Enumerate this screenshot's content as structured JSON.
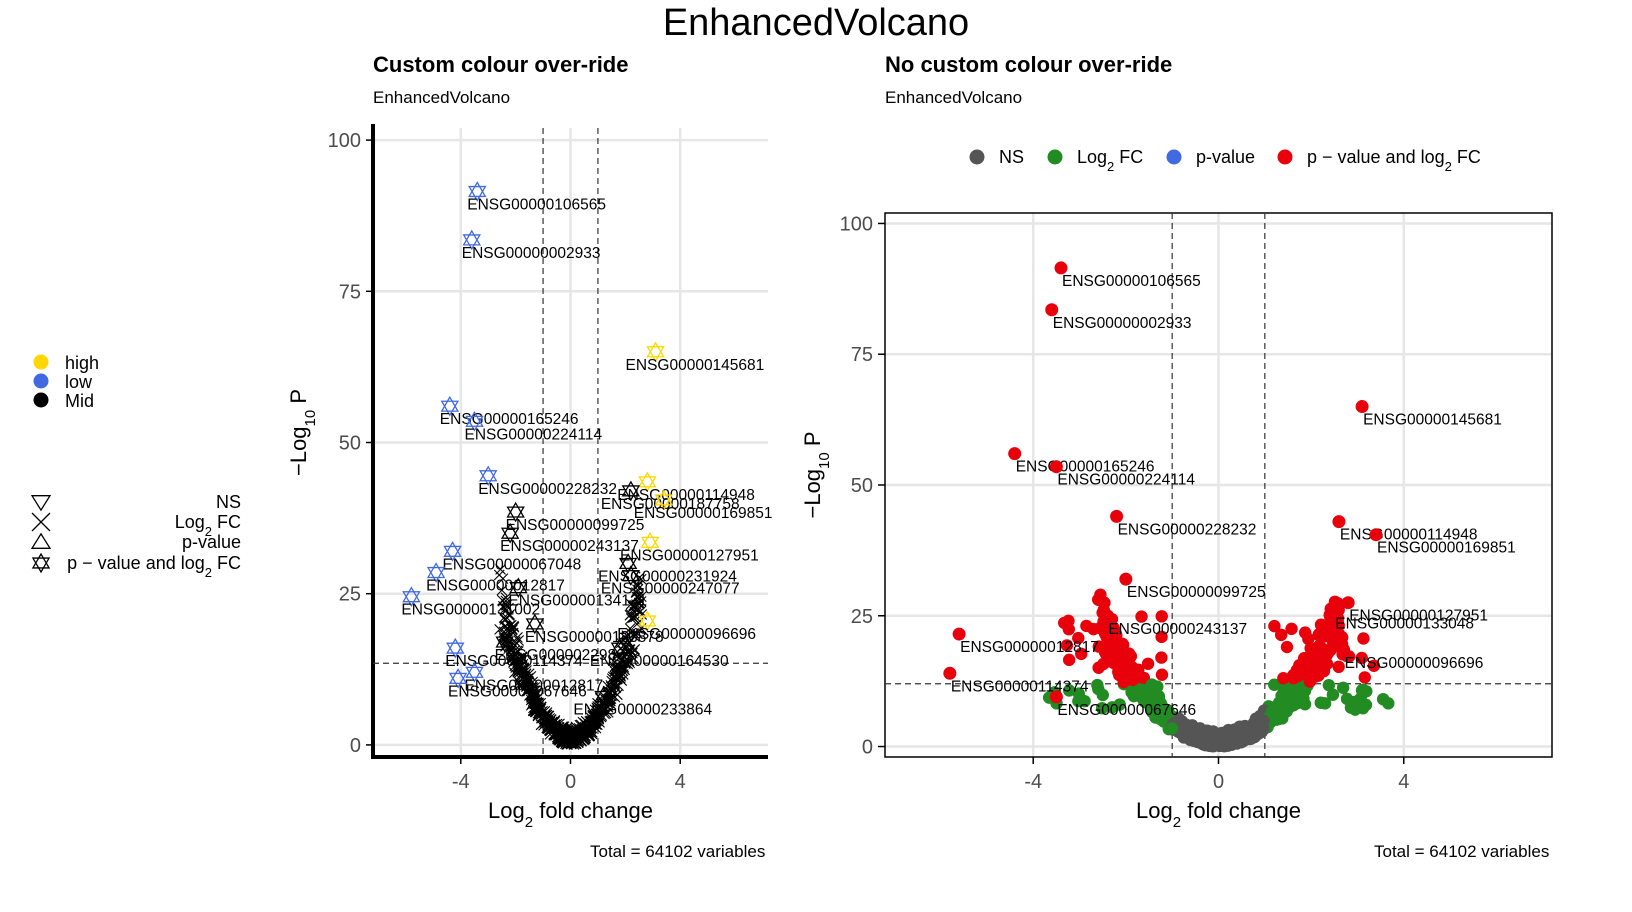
{
  "main_title": "EnhancedVolcano",
  "left_legend": {
    "colour_items": [
      {
        "label": "high",
        "color": "#FFD700"
      },
      {
        "label": "low",
        "color": "#4169E1"
      },
      {
        "label": "Mid",
        "color": "#000000"
      }
    ],
    "shape_items": [
      {
        "label": "NS",
        "shape": "triangle-down"
      },
      {
        "label_main": "Log",
        "label_sub": "2",
        "label_tail": " FC",
        "shape": "cross"
      },
      {
        "label": "p-value",
        "shape": "triangle-up"
      },
      {
        "label_main": "p − value and log",
        "label_sub": "2",
        "label_tail": " FC",
        "shape": "star"
      }
    ]
  },
  "right_legend": {
    "items": [
      {
        "label": "NS",
        "color": "#555555"
      },
      {
        "label_main": "Log",
        "label_sub": "2",
        "label_tail": " FC",
        "color": "#228B22"
      },
      {
        "label": "p-value",
        "color": "#4169E1"
      },
      {
        "label_main": "p − value and log",
        "label_sub": "2",
        "label_tail": " FC",
        "color": "#E8000B"
      }
    ]
  },
  "chart_data": [
    {
      "type": "scatter",
      "title": "Custom colour over-ride",
      "subtitle": "EnhancedVolcano",
      "caption": "Total = 64102 variables",
      "xlabel_main": "Log",
      "xlabel_sub": "2",
      "xlabel_tail": " fold change",
      "ylabel_main": "−Log",
      "ylabel_sub": "10",
      "ylabel_tail": " P",
      "xlim": [
        -7.2,
        7.2
      ],
      "ylim": [
        -2,
        102
      ],
      "xticks": [
        -4,
        0,
        4
      ],
      "yticks": [
        0,
        25,
        50,
        75,
        100
      ],
      "fc_cutoff": 1,
      "p_cutoff_log10": 13.5,
      "labels": [
        {
          "gene": "ENSG00000106565",
          "x": -3.4,
          "y": 91.5,
          "color": "#4169E1"
        },
        {
          "gene": "ENSG00000002933",
          "x": -3.6,
          "y": 83.5,
          "color": "#4169E1"
        },
        {
          "gene": "ENSG00000145681",
          "x": 3.1,
          "y": 65,
          "color": "#FFD700"
        },
        {
          "gene": "ENSG00000165246",
          "x": -4.4,
          "y": 56,
          "color": "#4169E1"
        },
        {
          "gene": "ENSG00000224114",
          "x": -3.5,
          "y": 53.5,
          "color": "#4169E1"
        },
        {
          "gene": "ENSG00000228232",
          "x": -3.0,
          "y": 44.5,
          "color": "#4169E1"
        },
        {
          "gene": "ENSG00000114948",
          "x": 2.8,
          "y": 43.5,
          "color": "#FFD700"
        },
        {
          "gene": "ENSG00000187758",
          "x": 2.2,
          "y": 42,
          "color": "#000000"
        },
        {
          "gene": "ENSG00000169851",
          "x": 3.4,
          "y": 40.5,
          "color": "#FFD700"
        },
        {
          "gene": "ENSG00000099725",
          "x": -2.0,
          "y": 38.5,
          "color": "#000000"
        },
        {
          "gene": "ENSG00000243137",
          "x": -2.2,
          "y": 35,
          "color": "#000000"
        },
        {
          "gene": "ENSG00000127951",
          "x": 2.9,
          "y": 33.5,
          "color": "#FFD700"
        },
        {
          "gene": "ENSG00000231924",
          "x": 2.1,
          "y": 30,
          "color": "#000000"
        },
        {
          "gene": "ENSG00000067048",
          "x": -4.3,
          "y": 32,
          "color": "#4169E1"
        },
        {
          "gene": "ENSG00000012817",
          "x": -4.9,
          "y": 28.5,
          "color": "#4169E1"
        },
        {
          "gene": "ENSG00000247077",
          "x": 2.2,
          "y": 28,
          "color": "#000000"
        },
        {
          "gene": "ENSG00000134121",
          "x": -1.9,
          "y": 26,
          "color": "#000000"
        },
        {
          "gene": "ENSG00000131002",
          "x": -5.8,
          "y": 24.5,
          "color": "#4169E1"
        },
        {
          "gene": "ENSG00000096696",
          "x": 2.8,
          "y": 20.5,
          "color": "#FFD700"
        },
        {
          "gene": "ENSG00000183878",
          "x": -1.3,
          "y": 20,
          "color": "#000000"
        },
        {
          "gene": "ENSG00000229807",
          "x": -2.4,
          "y": 17,
          "color": "#000000"
        },
        {
          "gene": "ENSG00000114374",
          "x": -4.2,
          "y": 16,
          "color": "#4169E1"
        },
        {
          "gene": "ENSG00000164530",
          "x": 1.8,
          "y": 16,
          "color": "#000000"
        },
        {
          "gene": "ENSG00000012817",
          "x": -3.5,
          "y": 12,
          "color": "#4169E1"
        },
        {
          "gene": "ENSG00000233864",
          "x": 1.2,
          "y": 8,
          "color": "#000000"
        },
        {
          "gene": "ENSG00000067646",
          "x": -4.1,
          "y": 11,
          "color": "#4169E1"
        }
      ]
    },
    {
      "type": "scatter",
      "title": "No custom colour over-ride",
      "subtitle": "EnhancedVolcano",
      "caption": "Total = 64102 variables",
      "xlabel_main": "Log",
      "xlabel_sub": "2",
      "xlabel_tail": " fold change",
      "ylabel_main": "−Log",
      "ylabel_sub": "10",
      "ylabel_tail": " P",
      "xlim": [
        -7.2,
        7.2
      ],
      "ylim": [
        -2,
        102
      ],
      "xticks": [
        -4,
        0,
        4
      ],
      "yticks": [
        0,
        25,
        50,
        75,
        100
      ],
      "fc_cutoff": 1,
      "p_cutoff_log10": 12,
      "labels": [
        {
          "gene": "ENSG00000106565",
          "x": -3.4,
          "y": 91.5
        },
        {
          "gene": "ENSG00000002933",
          "x": -3.6,
          "y": 83.5
        },
        {
          "gene": "ENSG00000145681",
          "x": 3.1,
          "y": 65
        },
        {
          "gene": "ENSG00000165246",
          "x": -4.4,
          "y": 56
        },
        {
          "gene": "ENSG00000224114",
          "x": -3.5,
          "y": 53.5
        },
        {
          "gene": "ENSG00000228232",
          "x": -2.2,
          "y": 44
        },
        {
          "gene": "ENSG00000114948",
          "x": 2.6,
          "y": 43
        },
        {
          "gene": "ENSG00000169851",
          "x": 3.4,
          "y": 40.5
        },
        {
          "gene": "ENSG00000099725",
          "x": -2.0,
          "y": 32
        },
        {
          "gene": "ENSG00000243137",
          "x": -2.4,
          "y": 25
        },
        {
          "gene": "ENSG00000127951",
          "x": 2.8,
          "y": 27.5
        },
        {
          "gene": "ENSG00000133048",
          "x": 2.5,
          "y": 26
        },
        {
          "gene": "ENSG00000012817",
          "x": -5.6,
          "y": 21.5
        },
        {
          "gene": "ENSG00000096696",
          "x": 2.7,
          "y": 18.5
        },
        {
          "gene": "ENSG00000114374",
          "x": -5.8,
          "y": 14
        },
        {
          "gene": "ENSG00000067646",
          "x": -3.5,
          "y": 9.5
        }
      ]
    }
  ]
}
